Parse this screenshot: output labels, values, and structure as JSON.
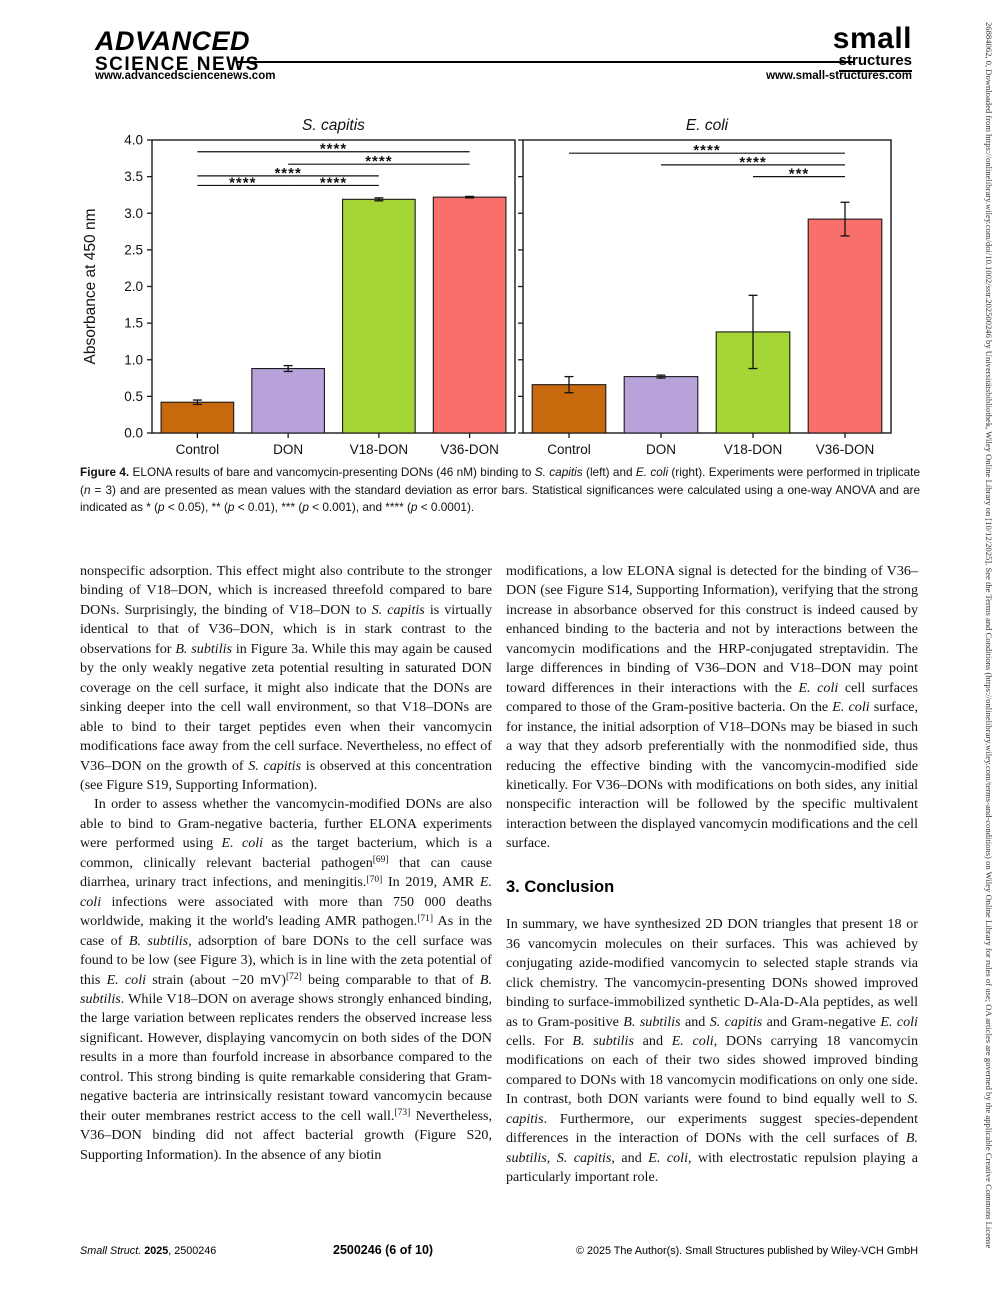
{
  "header": {
    "brand_line1": "ADVANCED",
    "brand_line2": "SCIENCE NEWS",
    "brand_url": "www.advancedsciencenews.com",
    "journal_line1": "small",
    "journal_line2": "structures",
    "journal_url": "www.small-structures.com"
  },
  "sidebar_text": "26884062, 0, Downloaded from https://onlinelibrary.wiley.com/doi/10.1002/sstr.202500246 by Universitätsbibliothek, Wiley Online Library on [10/12/2025]. See the Terms and Conditions (https://onlinelibrary.wiley.com/terms-and-conditions) on Wiley Online Library for rules of use; OA articles are governed by the applicable Creative Commons License",
  "chart_data": [
    {
      "type": "bar",
      "title": "S. capitis",
      "ylabel": "Absorbance at 450 nm",
      "categories": [
        "Control",
        "DON",
        "V18-DON",
        "V36-DON"
      ],
      "values": [
        0.42,
        0.88,
        3.19,
        3.22
      ],
      "errors": [
        0.03,
        0.04,
        0.02,
        0.01
      ],
      "bar_colors": [
        "#c9690e",
        "#b7a2d9",
        "#a5d636",
        "#f96f6b"
      ],
      "ylim": [
        0,
        4.0
      ],
      "ytick_step": 0.5,
      "show_ytick_labels": true,
      "grid": false,
      "significance": [
        {
          "a": 0,
          "b": 3,
          "y": 3.84,
          "label": "****"
        },
        {
          "a": 1,
          "b": 3,
          "y": 3.67,
          "label": "****"
        },
        {
          "a": 0,
          "b": 2,
          "y": 3.51,
          "label": "****"
        },
        {
          "a": 0,
          "b": 1,
          "y": 3.38,
          "label": "****"
        },
        {
          "a": 1,
          "b": 2,
          "y": 3.38,
          "label": "****"
        }
      ]
    },
    {
      "type": "bar",
      "title": "E. coli",
      "ylabel": "",
      "categories": [
        "Control",
        "DON",
        "V18-DON",
        "V36-DON"
      ],
      "values": [
        0.66,
        0.77,
        1.38,
        2.92
      ],
      "errors": [
        0.11,
        0.02,
        0.5,
        0.23
      ],
      "bar_colors": [
        "#c9690e",
        "#b7a2d9",
        "#a5d636",
        "#f96f6b"
      ],
      "ylim": [
        0,
        4.0
      ],
      "ytick_step": 0.5,
      "show_ytick_labels": false,
      "grid": false,
      "significance": [
        {
          "a": 0,
          "b": 3,
          "y": 3.82,
          "label": "****"
        },
        {
          "a": 1,
          "b": 3,
          "y": 3.66,
          "label": "****"
        },
        {
          "a": 2,
          "b": 3,
          "y": 3.5,
          "label": "***"
        }
      ]
    }
  ],
  "figure_caption": {
    "segments": [
      {
        "t": "Figure 4.",
        "b": 1
      },
      {
        "t": "  ELONA results of bare and vancomycin-presenting DONs (46 nM) binding to "
      },
      {
        "t": "S. capitis",
        "i": 1
      },
      {
        "t": " (left) and "
      },
      {
        "t": "E. coli",
        "i": 1
      },
      {
        "t": " (right). Experiments were performed in triplicate ("
      },
      {
        "t": "n",
        "i": 1
      },
      {
        "t": " = 3) and are presented as mean values with the standard deviation as error bars. Statistical significances were calculated using a one-way ANOVA and are indicated as * ("
      },
      {
        "t": "p",
        "i": 1
      },
      {
        "t": " < 0.05), ** ("
      },
      {
        "t": "p",
        "i": 1
      },
      {
        "t": " < 0.01), *** ("
      },
      {
        "t": "p",
        "i": 1
      },
      {
        "t": " < 0.001), and **** ("
      },
      {
        "t": "p",
        "i": 1
      },
      {
        "t": " < 0.0001)."
      }
    ]
  },
  "body": {
    "left_p1": [
      {
        "t": "nonspecific adsorption. This effect might also contribute to the stronger binding of V18–DON, which is increased threefold compared to bare DONs. Surprisingly, the binding of V18–DON to "
      },
      {
        "t": "S. capitis",
        "i": 1
      },
      {
        "t": " is virtually identical to that of V36–DON, which is in stark contrast to the observations for "
      },
      {
        "t": "B. subtilis",
        "i": 1
      },
      {
        "t": " in Figure 3a. While this may again be caused by the only weakly negative zeta potential resulting in saturated DON coverage on the cell surface, it might also indicate that the DONs are sinking deeper into the cell wall environment, so that V18–DONs are able to bind to their target peptides even when their vancomycin modifications face away from the cell surface. Nevertheless, no effect of V36–DON on the growth of "
      },
      {
        "t": "S. capitis",
        "i": 1
      },
      {
        "t": " is observed at this concentration (see Figure S19, Supporting Information)."
      }
    ],
    "left_p2": [
      {
        "t": "In order to assess whether the vancomycin-modified DONs are also able to bind to Gram-negative bacteria, further ELONA experiments were performed using "
      },
      {
        "t": "E. coli",
        "i": 1
      },
      {
        "t": " as the target bacterium, which is a common, clinically relevant bacterial pathogen"
      },
      {
        "t": "[69]",
        "sup": 1
      },
      {
        "t": " that can cause diarrhea, urinary tract infections, and meningitis."
      },
      {
        "t": "[70]",
        "sup": 1
      },
      {
        "t": " In 2019, AMR "
      },
      {
        "t": "E. coli",
        "i": 1
      },
      {
        "t": " infections were associated with more than 750 000 deaths worldwide, making it the world's leading AMR pathogen."
      },
      {
        "t": "[71]",
        "sup": 1
      },
      {
        "t": " As in the case of "
      },
      {
        "t": "B. subtilis",
        "i": 1
      },
      {
        "t": ", adsorption of bare DONs to the cell surface was found to be low (see Figure 3), which is in line with the zeta potential of this "
      },
      {
        "t": "E. coli",
        "i": 1
      },
      {
        "t": " strain (about −20 mV)"
      },
      {
        "t": "[72]",
        "sup": 1
      },
      {
        "t": " being comparable to that of "
      },
      {
        "t": "B. subtilis",
        "i": 1
      },
      {
        "t": ". While V18–DON on average shows strongly enhanced binding, the large variation between replicates renders the observed increase less significant. However, displaying vancomycin on both sides of the DON results in a more than fourfold increase in absorbance compared to the control. This strong binding is quite remarkable considering that Gram-negative bacteria are intrinsically resistant toward vancomycin because their outer membranes restrict access to the cell wall."
      },
      {
        "t": "[73]",
        "sup": 1
      },
      {
        "t": " Nevertheless, V36–DON binding did not affect bacterial growth (Figure S20, Supporting Information). In the absence of any biotin"
      }
    ],
    "right_p1": [
      {
        "t": "modifications, a low ELONA signal is detected for the binding of V36–DON (see Figure S14, Supporting Information), verifying that the strong increase in absorbance observed for this construct is indeed caused by enhanced binding to the bacteria and not by interactions between the vancomycin modifications and the HRP-conjugated streptavidin. The large differences in binding of V36–DON and V18–DON may point toward differences in their interactions with the "
      },
      {
        "t": "E. coli",
        "i": 1
      },
      {
        "t": " cell surfaces compared to those of the Gram-positive bacteria. On the "
      },
      {
        "t": "E. coli",
        "i": 1
      },
      {
        "t": " surface, for instance, the initial adsorption of V18–DONs may be biased in such a way that they adsorb preferentially with the nonmodified side, thus reducing the effective binding with the vancomycin-modified side kinetically. For V36–DONs with modifications on both sides, any initial nonspecific interaction will be followed by the specific multivalent interaction between the displayed vancomycin modifications and the cell surface."
      }
    ],
    "conclusion_heading": "3. Conclusion",
    "right_p2": [
      {
        "t": "In summary, we have synthesized 2D DON triangles that present 18 or 36 vancomycin molecules on their surfaces. This was achieved by conjugating azide-modified vancomycin to selected staple strands via click chemistry. The vancomycin-presenting DONs showed improved binding to surface-immobilized synthetic D-Ala-D-Ala peptides, as well as to Gram-positive "
      },
      {
        "t": "B. subtilis",
        "i": 1
      },
      {
        "t": " and "
      },
      {
        "t": "S. capitis",
        "i": 1
      },
      {
        "t": " and Gram-negative "
      },
      {
        "t": "E. coli",
        "i": 1
      },
      {
        "t": " cells. For "
      },
      {
        "t": "B. subtilis",
        "i": 1
      },
      {
        "t": " and "
      },
      {
        "t": "E. coli",
        "i": 1
      },
      {
        "t": ", DONs carrying 18 vancomycin modifications on each of their two sides showed improved binding compared to DONs with 18 vancomycin modifications on only one side. In contrast, both DON variants were found to bind equally well to "
      },
      {
        "t": "S. capitis",
        "i": 1
      },
      {
        "t": ". Furthermore, our experiments suggest species-dependent differences in the interaction of DONs with the cell surfaces of "
      },
      {
        "t": "B. subtilis",
        "i": 1
      },
      {
        "t": ", "
      },
      {
        "t": "S. capitis",
        "i": 1
      },
      {
        "t": ", and "
      },
      {
        "t": "E. coli",
        "i": 1
      },
      {
        "t": ", with electrostatic repulsion playing a particularly important role."
      }
    ]
  },
  "footer": {
    "left_segments": [
      {
        "t": "Small Struct. ",
        "i": 1
      },
      {
        "t": "2025",
        "b": 1
      },
      {
        "t": ", 2500246"
      }
    ],
    "center": "2500246 (6 of 10)",
    "right": "© 2025 The Author(s). Small Structures published by Wiley-VCH GmbH"
  }
}
